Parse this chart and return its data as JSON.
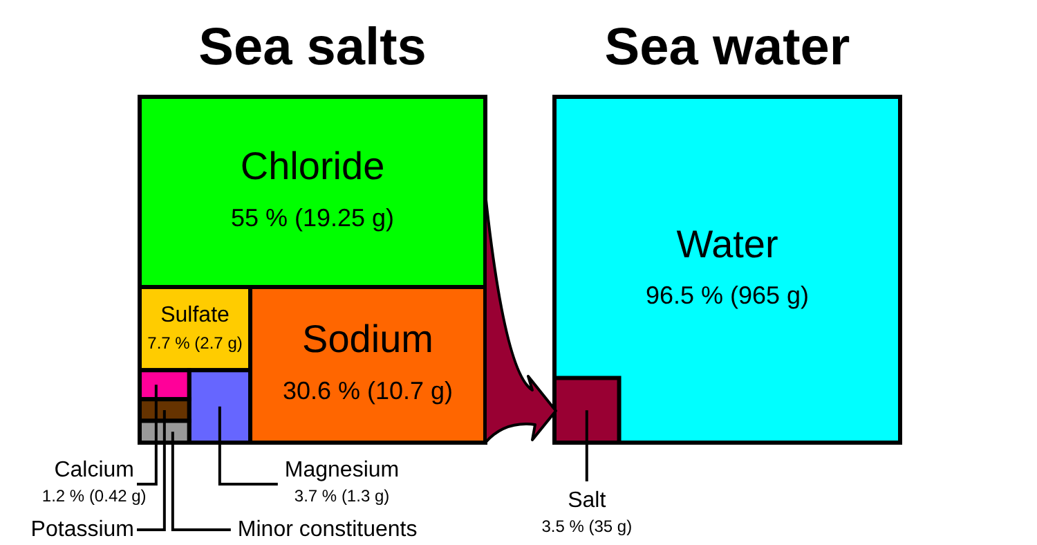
{
  "chart_data": [
    {
      "type": "other",
      "title": "Sea salts",
      "categories": [
        "Chloride",
        "Sodium",
        "Sulfate",
        "Magnesium",
        "Calcium",
        "Potassium",
        "Minor constituents"
      ],
      "values": [
        55,
        30.6,
        7.7,
        3.7,
        1.2,
        null,
        null
      ],
      "value_labels": [
        "55 % (19.25 g)",
        "30.6 % (10.7 g)",
        "7.7 % (2.7 g)",
        "3.7 % (1.3 g)",
        "1.2 % (0.42 g)",
        null,
        null
      ],
      "colors": [
        "#00ff00",
        "#ff6600",
        "#ffcc00",
        "#6666ff",
        "#ff0099",
        "#663300",
        "#999999"
      ]
    },
    {
      "type": "other",
      "title": "Sea water",
      "categories": [
        "Water",
        "Salt"
      ],
      "values": [
        96.5,
        3.5
      ],
      "value_labels": [
        "96.5 % (965 g)",
        "3.5 % (35 g)"
      ],
      "colors": [
        "#00ffff",
        "#990033"
      ]
    }
  ]
}
